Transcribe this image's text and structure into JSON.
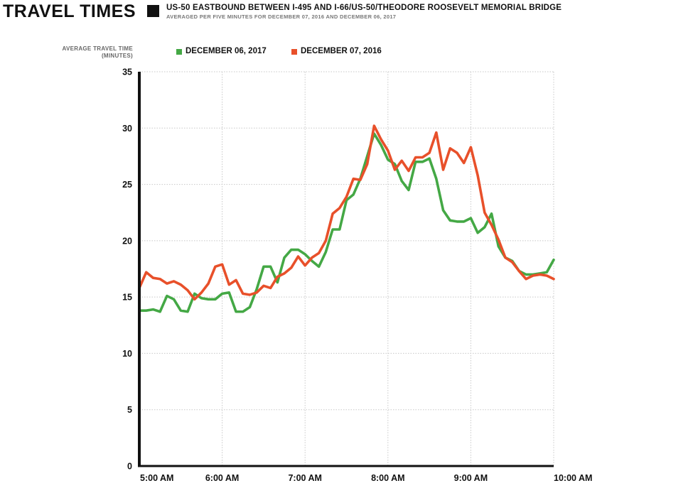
{
  "header": {
    "title": "TRAVEL TIMES",
    "subtitle": "US-50 EASTBOUND BETWEEN I-495 AND I-66/US-50/THEODORE ROOSEVELT MEMORIAL BRIDGE",
    "subsubtitle": "AVERAGED PER FIVE MINUTES FOR DECEMBER 07, 2016 AND DECEMBER 06, 2017"
  },
  "colors": {
    "green": "#44a845",
    "red": "#e8502a",
    "grid": "#c8c8c8",
    "axis": "#111111"
  },
  "chart_data": {
    "type": "line",
    "title": "TRAVEL TIMES",
    "ylabel": "AVERAGE TRAVEL TIME (MINUTES)",
    "xlabel": "",
    "x_start_label": "5:00 AM",
    "x_step_minutes": 5,
    "xlim_minutes": [
      0,
      300
    ],
    "ylim": [
      0,
      35
    ],
    "x_ticks": [
      "5:00 AM",
      "6:00 AM",
      "7:00 AM",
      "8:00 AM",
      "9:00 AM",
      "10:00 AM"
    ],
    "y_ticks": [
      0,
      5,
      10,
      15,
      20,
      25,
      30,
      35
    ],
    "grid": true,
    "legend_position": "top",
    "series": [
      {
        "name": "DECEMBER 06, 2017",
        "color": "#44a845",
        "values": [
          13.8,
          13.8,
          13.9,
          13.7,
          15.1,
          14.8,
          13.8,
          13.7,
          15.3,
          14.9,
          14.8,
          14.8,
          15.3,
          15.4,
          13.7,
          13.7,
          14.1,
          15.7,
          17.7,
          17.7,
          16.3,
          18.5,
          19.2,
          19.2,
          18.8,
          18.2,
          17.7,
          19.0,
          21.0,
          21.0,
          23.6,
          24.1,
          25.5,
          27.5,
          29.5,
          28.5,
          27.2,
          26.8,
          25.3,
          24.5,
          27.0,
          27.0,
          27.3,
          25.5,
          22.7,
          21.8,
          21.7,
          21.7,
          22.0,
          20.7,
          21.2,
          22.4,
          19.5,
          18.5,
          18.2,
          17.3,
          17.0,
          17.0,
          17.1,
          17.2,
          18.3
        ]
      },
      {
        "name": "DECEMBER 07, 2016",
        "color": "#e8502a",
        "values": [
          15.8,
          17.2,
          16.7,
          16.6,
          16.2,
          16.4,
          16.1,
          15.6,
          14.8,
          15.4,
          16.2,
          17.7,
          17.9,
          16.1,
          16.5,
          15.3,
          15.2,
          15.4,
          16.0,
          15.8,
          16.8,
          17.1,
          17.6,
          18.6,
          17.8,
          18.5,
          18.9,
          20.0,
          22.4,
          22.9,
          23.9,
          25.5,
          25.4,
          26.8,
          30.2,
          29.0,
          28.0,
          26.3,
          27.1,
          26.2,
          27.4,
          27.4,
          27.8,
          29.6,
          26.3,
          28.2,
          27.8,
          26.9,
          28.3,
          25.8,
          22.5,
          21.4,
          20.1,
          18.5,
          18.1,
          17.3,
          16.6,
          16.9,
          17.0,
          16.9,
          16.6
        ]
      }
    ]
  }
}
